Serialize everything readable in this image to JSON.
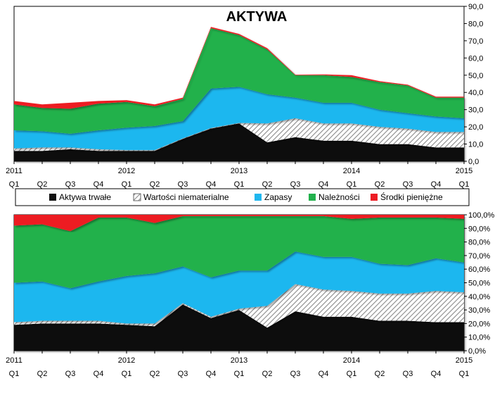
{
  "chart_data": [
    {
      "type": "area",
      "stacked": true,
      "title": "AKTYWA",
      "x": [
        "2011 Q1",
        "Q2",
        "Q3",
        "Q4",
        "2012 Q1",
        "Q2",
        "Q3",
        "Q4",
        "2013 Q1",
        "Q2",
        "Q3",
        "Q4",
        "2014 Q1",
        "Q2",
        "Q3",
        "Q4",
        "2015 Q1"
      ],
      "x_tick_top": [
        "2011",
        "",
        "",
        "",
        "2012",
        "",
        "",
        "",
        "2013",
        "",
        "",
        "",
        "2014",
        "",
        "",
        "",
        "2015"
      ],
      "x_tick_bottom": [
        "Q1",
        "Q2",
        "Q3",
        "Q4",
        "Q1",
        "Q2",
        "Q3",
        "Q4",
        "Q1",
        "Q2",
        "Q3",
        "Q4",
        "Q1",
        "Q2",
        "Q3",
        "Q4",
        "Q1"
      ],
      "ylim": [
        0,
        90
      ],
      "yticks": [
        "0,0",
        "10,0",
        "20,0",
        "30,0",
        "40,0",
        "50,0",
        "60,0",
        "70,0",
        "80,0",
        "90,0"
      ],
      "grid": false,
      "series": [
        {
          "name": "Aktywa trwałe",
          "color": "#111111",
          "values": [
            6,
            6,
            7,
            6,
            6,
            6,
            13,
            19,
            22,
            11,
            14,
            12,
            12,
            10,
            10,
            8,
            8
          ]
        },
        {
          "name": "Wartości niematerialne",
          "color": "#d9d9d9",
          "values": [
            1.5,
            2,
            1,
            1,
            0.5,
            0.5,
            0.3,
            0.3,
            0.3,
            11,
            11,
            10,
            10,
            10,
            9,
            9,
            9
          ]
        },
        {
          "name": "Zapasy",
          "color": "#1fb7ef",
          "values": [
            10.5,
            9.5,
            8,
            11,
            13,
            14,
            10,
            23,
            21,
            17,
            12,
            12,
            12,
            10,
            9,
            9,
            8
          ]
        },
        {
          "name": "Należności",
          "color": "#22b14c",
          "values": [
            15,
            13.5,
            14.5,
            15.5,
            15,
            11.5,
            13,
            35,
            30,
            26,
            13,
            16,
            15,
            16,
            16,
            11,
            12
          ]
        },
        {
          "name": "Środki pieniężne",
          "color": "#ed1c24",
          "values": [
            2,
            2,
            3.5,
            1.5,
            1,
            1,
            0.7,
            0.7,
            0.7,
            0.7,
            0.3,
            0.5,
            1,
            0.5,
            0.5,
            0.5,
            0.5
          ]
        }
      ]
    },
    {
      "type": "area",
      "stacked": true,
      "percent": true,
      "x": [
        "2011 Q1",
        "Q2",
        "Q3",
        "Q4",
        "2012 Q1",
        "Q2",
        "Q3",
        "Q4",
        "2013 Q1",
        "Q2",
        "Q3",
        "Q4",
        "2014 Q1",
        "Q2",
        "Q3",
        "Q4",
        "2015 Q1"
      ],
      "x_tick_top": [
        "2011",
        "",
        "",
        "",
        "2012",
        "",
        "",
        "",
        "2013",
        "",
        "",
        "",
        "2014",
        "",
        "",
        "",
        "2015"
      ],
      "x_tick_bottom": [
        "Q1",
        "Q2",
        "Q3",
        "Q4",
        "Q1",
        "Q2",
        "Q3",
        "Q4",
        "Q1",
        "Q2",
        "Q3",
        "Q4",
        "Q1",
        "Q2",
        "Q3",
        "Q4",
        "Q1"
      ],
      "ylim": [
        0,
        100
      ],
      "yticks": [
        "0,0%",
        "10,0%",
        "20,0%",
        "30,0%",
        "40,0%",
        "50,0%",
        "60,0%",
        "70,0%",
        "80,0%",
        "90,0%",
        "100,0%"
      ],
      "grid": false,
      "series": [
        {
          "name": "Aktywa trwałe",
          "color": "#111111",
          "values": [
            19,
            20,
            20,
            20,
            19,
            18,
            34,
            24,
            30,
            17,
            29,
            25,
            25,
            22,
            22,
            21,
            21
          ]
        },
        {
          "name": "Wartości niematerialne",
          "color": "#d9d9d9",
          "values": [
            2,
            2,
            2,
            2,
            1,
            2,
            1,
            1,
            1,
            16,
            20,
            20,
            19,
            20,
            20,
            23,
            22
          ]
        },
        {
          "name": "Zapasy",
          "color": "#1fb7ef",
          "values": [
            29,
            29,
            24,
            29,
            35,
            37,
            27,
            29,
            28,
            26,
            24,
            24,
            25,
            22,
            21,
            24,
            22
          ]
        },
        {
          "name": "Należności",
          "color": "#22b14c",
          "values": [
            42,
            42,
            42,
            47,
            43,
            37,
            37,
            45,
            40,
            40,
            26,
            30,
            28,
            34,
            35,
            30,
            32
          ]
        },
        {
          "name": "Środki pieniężne",
          "color": "#ed1c24",
          "values": [
            8,
            7,
            12,
            2,
            2,
            6,
            1,
            1,
            1,
            1,
            1,
            1,
            3,
            2,
            2,
            2,
            3
          ]
        }
      ]
    }
  ],
  "legend": {
    "placement": "between",
    "items": [
      {
        "label": "Aktywa trwałe",
        "color": "#111111",
        "icon": "solid-swatch"
      },
      {
        "label": "Wartości niematerialne",
        "color": "#d9d9d9",
        "icon": "hatched-swatch"
      },
      {
        "label": "Zapasy",
        "color": "#1fb7ef",
        "icon": "solid-swatch"
      },
      {
        "label": "Należności",
        "color": "#22b14c",
        "icon": "solid-swatch"
      },
      {
        "label": "Środki pieniężne",
        "color": "#ed1c24",
        "icon": "solid-swatch"
      }
    ]
  }
}
